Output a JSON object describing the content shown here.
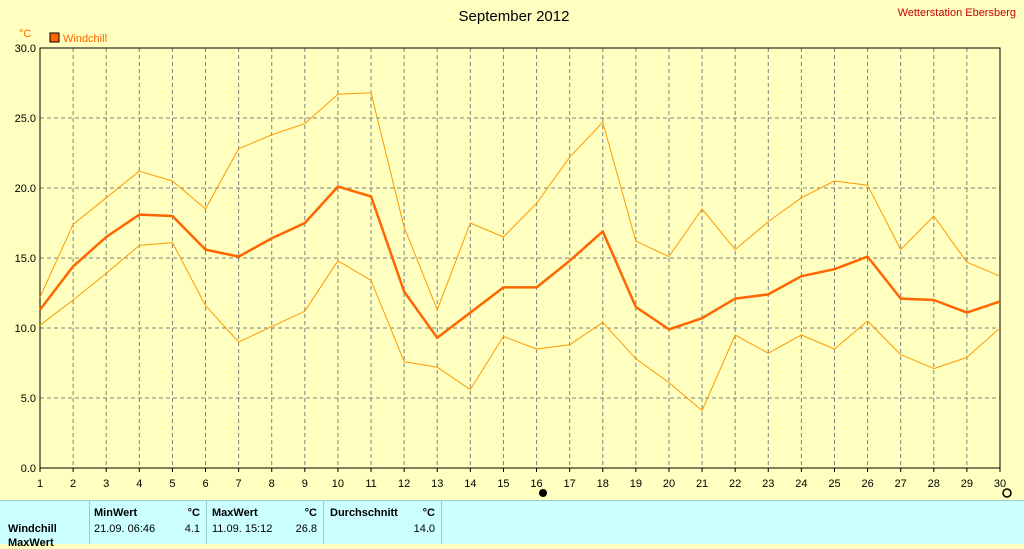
{
  "page": {
    "title": "September 2012",
    "station": "Wetterstation Ebersberg"
  },
  "chart_data": {
    "type": "line",
    "title": "September 2012",
    "ylabel": "°C",
    "ylim": [
      0,
      30
    ],
    "ytick_step": 5,
    "x": [
      1,
      2,
      3,
      4,
      5,
      6,
      7,
      8,
      9,
      10,
      11,
      12,
      13,
      14,
      15,
      16,
      17,
      18,
      19,
      20,
      21,
      22,
      23,
      24,
      25,
      26,
      27,
      28,
      29,
      30
    ],
    "legend": "top-left",
    "grid": true,
    "series": [
      {
        "name": "Windchill",
        "role": "mean",
        "color": "#ff6600",
        "values": [
          11.3,
          14.4,
          16.5,
          18.1,
          18.0,
          15.6,
          15.1,
          16.4,
          17.5,
          20.1,
          19.4,
          12.6,
          9.3,
          11.1,
          12.9,
          12.9,
          14.8,
          16.9,
          11.5,
          9.9,
          10.7,
          12.1,
          12.4,
          13.7,
          14.2,
          15.1,
          12.1,
          12.0,
          11.1,
          11.9
        ]
      },
      {
        "role": "max",
        "color": "#ff9900",
        "values": [
          12.2,
          17.4,
          19.3,
          21.2,
          20.5,
          18.5,
          22.8,
          23.8,
          24.6,
          26.7,
          26.8,
          17.2,
          11.3,
          17.5,
          16.5,
          18.9,
          22.2,
          24.7,
          16.2,
          15.1,
          18.5,
          15.6,
          17.6,
          19.3,
          20.5,
          20.2,
          15.6,
          18.0,
          14.7,
          13.7
        ]
      },
      {
        "role": "min",
        "color": "#ff9900",
        "values": [
          10.2,
          12.0,
          13.9,
          15.9,
          16.1,
          11.6,
          9.0,
          10.1,
          11.2,
          14.8,
          13.4,
          7.6,
          7.2,
          5.6,
          9.4,
          8.5,
          8.8,
          10.4,
          7.8,
          6.1,
          4.1,
          9.5,
          8.2,
          9.5,
          8.5,
          10.5,
          8.1,
          7.1,
          7.9,
          10.0
        ]
      }
    ]
  },
  "stats": {
    "row_label": "Windchill",
    "row_label_2": "MaxWert",
    "min": {
      "header": "MinWert",
      "unit": "°C",
      "time": "21.09.  06:46",
      "value": "4.1"
    },
    "max": {
      "header": "MaxWert",
      "unit": "°C",
      "time": "11.09.  15:12",
      "value": "26.8"
    },
    "avg": {
      "header": "Durchschnitt",
      "unit": "°C",
      "value": "14.0"
    }
  }
}
